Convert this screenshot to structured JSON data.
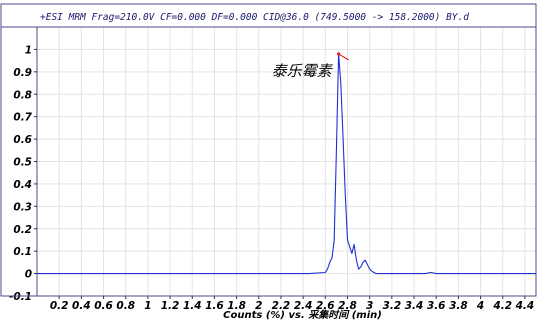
{
  "chart_data": {
    "type": "line",
    "title": "+ESI MRM Frag=210.0V CF=0.000 DF=0.000 CID@36.0 (749.5000 -> 158.2000) BY.d",
    "xlabel": "Counts (%) vs. 采集时间 (min)",
    "ylabel": "",
    "xlim": [
      0.0,
      4.5
    ],
    "ylim": [
      -0.1,
      1.1
    ],
    "x_ticks": [
      "0.2",
      "0.4",
      "0.6",
      "0.8",
      "1",
      "1.2",
      "1.4",
      "1.6",
      "1.8",
      "2",
      "2.2",
      "2.4",
      "2.6",
      "2.8",
      "3",
      "3.2",
      "3.4",
      "3.6",
      "3.8",
      "4",
      "4.2",
      "4.4"
    ],
    "y_ticks": [
      "-0.1",
      "0",
      "0.1",
      "0.2",
      "0.3",
      "0.4",
      "0.5",
      "0.6",
      "0.7",
      "0.8",
      "0.9",
      "1"
    ],
    "grid": true,
    "line_color": "#1f2fd6",
    "marker_color": "#ff0000",
    "annotation": {
      "text": "泰乐霉素",
      "x": 2.72,
      "y": 0.9
    },
    "series": [
      {
        "x": [
          0.0,
          2.0,
          2.45,
          2.6,
          2.62,
          2.64,
          2.66,
          2.68,
          2.7,
          2.72,
          2.74,
          2.76,
          2.78,
          2.8,
          2.82,
          2.84,
          2.86,
          2.88,
          2.9,
          2.92,
          2.94,
          2.96,
          2.98,
          3.0,
          3.02,
          3.04,
          3.06,
          3.1,
          3.2,
          3.5,
          3.55,
          3.6,
          4.0,
          4.5
        ],
        "y": [
          0.0,
          0.0,
          0.0,
          0.005,
          0.02,
          0.05,
          0.07,
          0.15,
          0.55,
          0.98,
          0.85,
          0.6,
          0.35,
          0.15,
          0.12,
          0.09,
          0.13,
          0.06,
          0.02,
          0.03,
          0.05,
          0.06,
          0.04,
          0.02,
          0.01,
          0.005,
          0.0,
          0.0,
          0.0,
          0.0,
          0.005,
          0.0,
          0.0,
          0.0
        ]
      }
    ]
  }
}
